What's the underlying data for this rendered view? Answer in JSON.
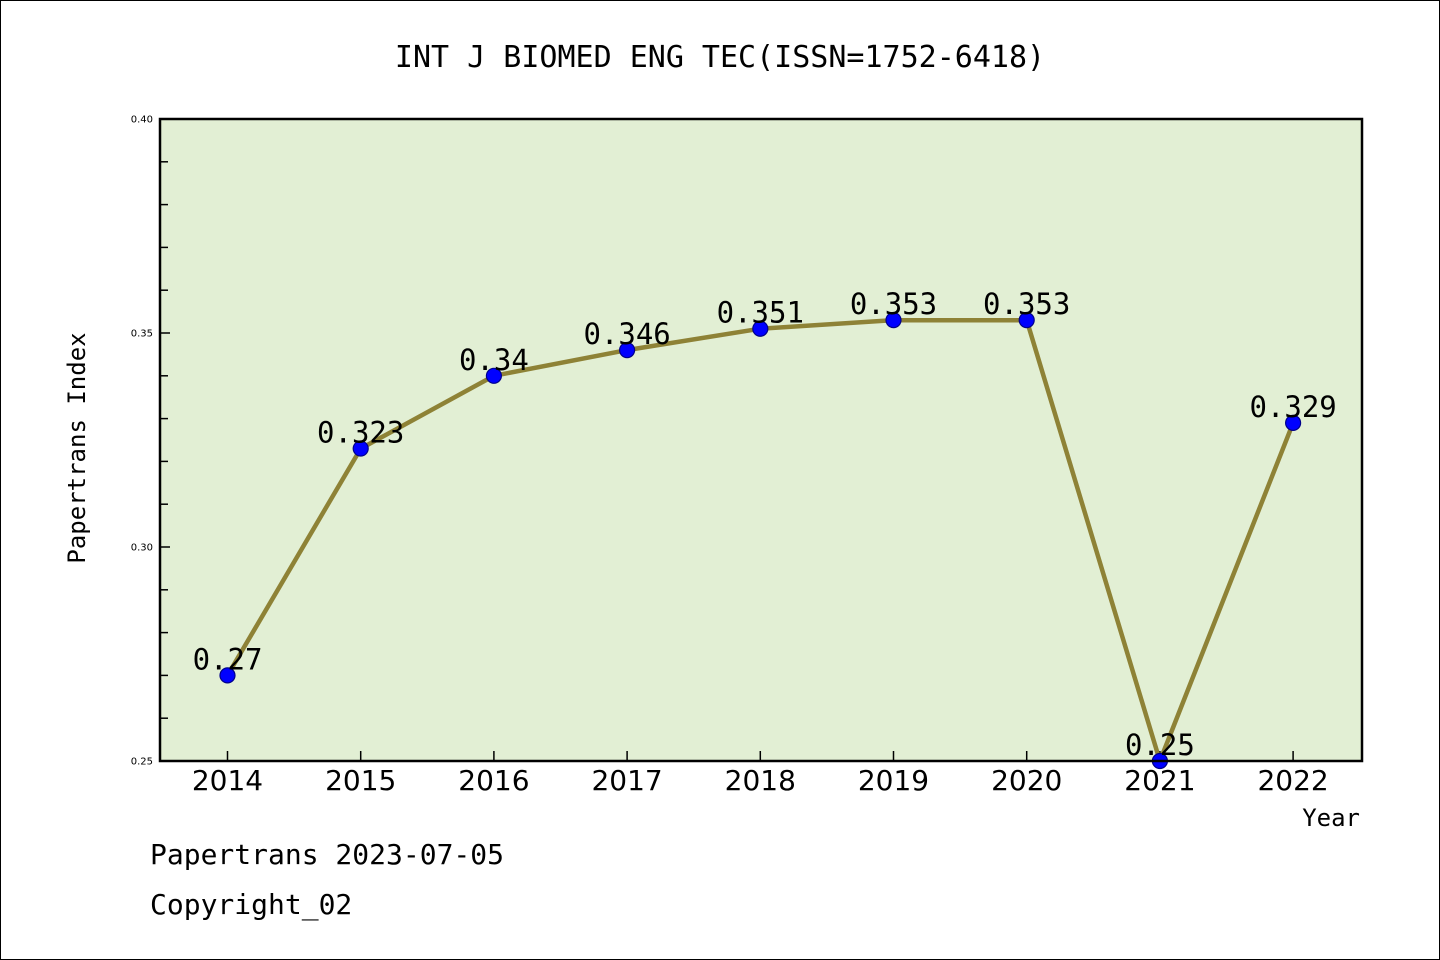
{
  "chart_data": {
    "type": "line",
    "title": "INT J BIOMED ENG TEC(ISSN=1752-6418)",
    "xlabel": "Year",
    "ylabel": "Papertrans Index",
    "categories": [
      "2014",
      "2015",
      "2016",
      "2017",
      "2018",
      "2019",
      "2020",
      "2021",
      "2022"
    ],
    "values": [
      0.27,
      0.323,
      0.34,
      0.346,
      0.351,
      0.353,
      0.353,
      0.25,
      0.329
    ],
    "data_labels": [
      "0.27",
      "0.323",
      "0.34",
      "0.346",
      "0.351",
      "0.353",
      "0.353",
      "0.25",
      "0.329"
    ],
    "ylim": [
      0.25,
      0.4
    ],
    "y_major_ticks": [
      0.25,
      0.3,
      0.35,
      0.4
    ],
    "y_major_tick_labels": [
      "0.25",
      "0.30",
      "0.35",
      "0.40"
    ],
    "y_minor_step": 0.01,
    "grid": false,
    "legend": "none",
    "colors": {
      "plot_background": "#e2efd4",
      "line": "#8e8236",
      "marker_fill": "#0000ff",
      "marker_edge": "#00008b"
    }
  },
  "footer": {
    "source": "Papertrans 2023-07-05",
    "copyright": "Copyright_02"
  }
}
